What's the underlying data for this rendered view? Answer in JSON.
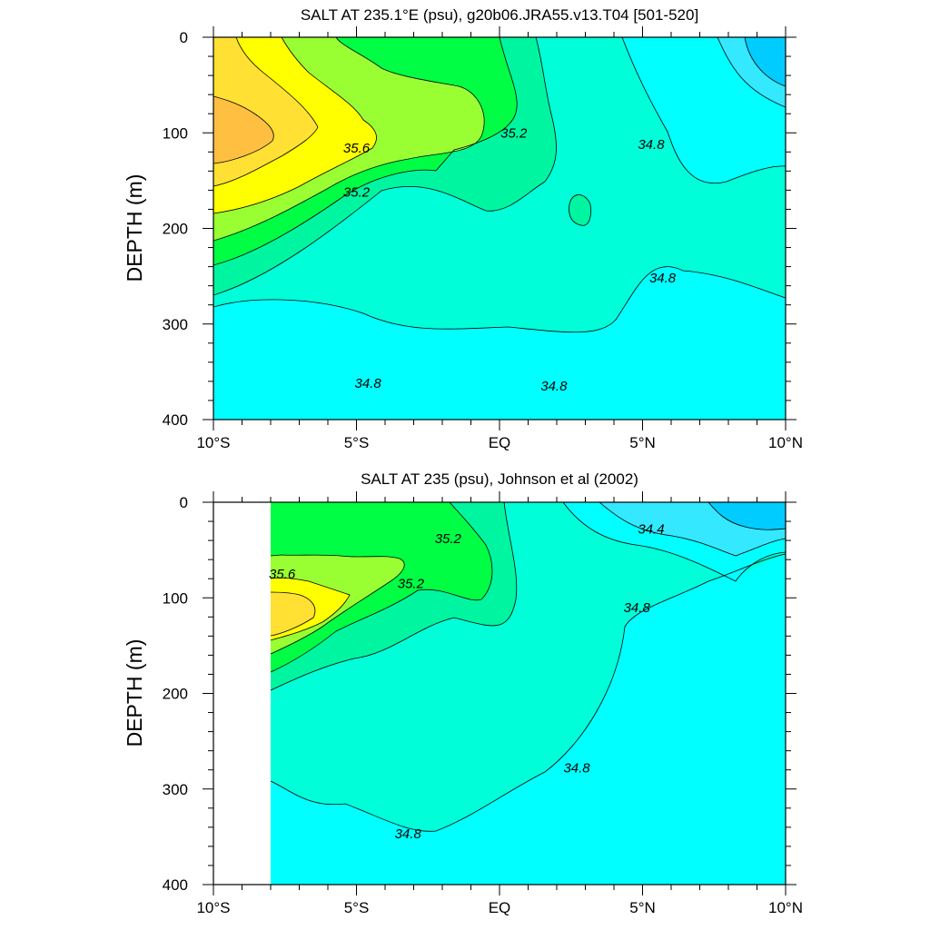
{
  "colors": {
    "s344": "#00ccff",
    "s346": "#33e8ff",
    "s348": "#00ffff",
    "s350": "#00ffd9",
    "s352": "#00f5a0",
    "s354": "#00ff44",
    "s356": "#99ff33",
    "s358": "#ffff00",
    "s360": "#ffe033",
    "s362": "#ffbf40"
  },
  "chart_data": [
    {
      "type": "contour",
      "title": "SALT AT 235.1°E (psu), g20b06.JRA55.v13.T04 [501-520]",
      "ylabel": "DEPTH (m)",
      "xlim": [
        -10,
        10
      ],
      "ylim": [
        0,
        400
      ],
      "y_inverted": true,
      "x_ticks": [
        -10,
        -5,
        0,
        5,
        10
      ],
      "x_tick_labels": [
        "10°S",
        "5°S",
        "EQ",
        "5°N",
        "10°N"
      ],
      "y_ticks": [
        0,
        100,
        200,
        300,
        400
      ],
      "y_tick_labels": [
        "0",
        "100",
        "200",
        "300",
        "400"
      ],
      "contour_labels": [
        {
          "text": "35.6",
          "x": -5.0,
          "y": 116
        },
        {
          "text": "35.2",
          "x": -5.0,
          "y": 162
        },
        {
          "text": "35.2",
          "x": 0.5,
          "y": 100
        },
        {
          "text": "34.8",
          "x": 5.3,
          "y": 112
        },
        {
          "text": "34.8",
          "x": 5.7,
          "y": 252
        },
        {
          "text": "34.8",
          "x": -4.6,
          "y": 362
        },
        {
          "text": "34.8",
          "x": 1.9,
          "y": 365
        }
      ]
    },
    {
      "type": "contour",
      "title": "SALT AT 235 (psu), Johnson et al (2002)",
      "ylabel": "DEPTH (m)",
      "xlim": [
        -10,
        10
      ],
      "ylim": [
        0,
        400
      ],
      "y_inverted": true,
      "data_xrange": [
        -8,
        10
      ],
      "x_ticks": [
        -10,
        -5,
        0,
        5,
        10
      ],
      "x_tick_labels": [
        "10°S",
        "5°S",
        "EQ",
        "5°N",
        "10°N"
      ],
      "y_ticks": [
        0,
        100,
        200,
        300,
        400
      ],
      "y_tick_labels": [
        "0",
        "100",
        "200",
        "300",
        "400"
      ],
      "contour_labels": [
        {
          "text": "35.2",
          "x": -1.8,
          "y": 38
        },
        {
          "text": "35.6",
          "x": -7.6,
          "y": 75
        },
        {
          "text": "35.2",
          "x": -3.1,
          "y": 85
        },
        {
          "text": "34.4",
          "x": 5.3,
          "y": 28
        },
        {
          "text": "34.8",
          "x": 4.8,
          "y": 110
        },
        {
          "text": "34.8",
          "x": 2.7,
          "y": 278
        },
        {
          "text": "34.8",
          "x": -3.2,
          "y": 347
        }
      ]
    }
  ]
}
